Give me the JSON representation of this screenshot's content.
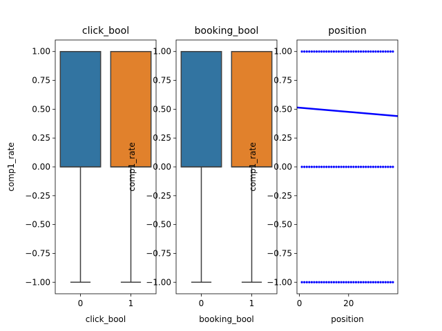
{
  "colors": {
    "box_0": "#3274a1",
    "box_1": "#e1812c",
    "box_edge": "#3f3f3f",
    "scatter": "#0000ff",
    "regression": "#0000ff"
  },
  "chart_data": [
    {
      "type": "box",
      "title": "click_bool",
      "xlabel": "click_bool",
      "ylabel": "comp1_rate",
      "categories": [
        "0",
        "1"
      ],
      "ylim": [
        -1.1,
        1.1
      ],
      "yticks": [
        "1.00",
        "0.75",
        "0.50",
        "0.25",
        "0.00",
        "−0.25",
        "−0.50",
        "−0.75",
        "−1.00"
      ],
      "ytick_values": [
        1.0,
        0.75,
        0.5,
        0.25,
        0.0,
        -0.25,
        -0.5,
        -0.75,
        -1.0
      ],
      "boxes": [
        {
          "category": "0",
          "whisker_low": -1.0,
          "q1": 0.0,
          "median": 0.0,
          "q3": 1.0,
          "whisker_high": 1.0
        },
        {
          "category": "1",
          "whisker_low": -1.0,
          "q1": 0.0,
          "median": 0.0,
          "q3": 1.0,
          "whisker_high": 1.0
        }
      ],
      "grid": false
    },
    {
      "type": "box",
      "title": "booking_bool",
      "xlabel": "booking_bool",
      "ylabel": "comp1_rate",
      "categories": [
        "0",
        "1"
      ],
      "ylim": [
        -1.1,
        1.1
      ],
      "yticks": [
        "1.00",
        "0.75",
        "0.50",
        "0.25",
        "0.00",
        "−0.25",
        "−0.50",
        "−0.75",
        "−1.00"
      ],
      "ytick_values": [
        1.0,
        0.75,
        0.5,
        0.25,
        0.0,
        -0.25,
        -0.5,
        -0.75,
        -1.0
      ],
      "boxes": [
        {
          "category": "0",
          "whisker_low": -1.0,
          "q1": 0.0,
          "median": 0.0,
          "q3": 1.0,
          "whisker_high": 1.0
        },
        {
          "category": "1",
          "whisker_low": -1.0,
          "q1": 0.0,
          "median": 0.0,
          "q3": 1.0,
          "whisker_high": 1.0
        }
      ],
      "grid": false
    },
    {
      "type": "scatter",
      "title": "position",
      "xlabel": "position",
      "ylabel": "comp1_rate",
      "xlim": [
        -1,
        40
      ],
      "ylim": [
        -1.1,
        1.1
      ],
      "xticks": [
        "0",
        "20"
      ],
      "xtick_values": [
        0,
        20
      ],
      "yticks": [
        "1.00",
        "0.75",
        "0.50",
        "0.25",
        "0.00",
        "−0.25",
        "−0.50",
        "−0.75",
        "−1.00"
      ],
      "ytick_values": [
        1.0,
        0.75,
        0.5,
        0.25,
        0.0,
        -0.25,
        -0.5,
        -0.75,
        -1.0
      ],
      "points": {
        "x_min": 1,
        "x_max": 38,
        "x_step": 1,
        "y_levels": [
          1.0,
          0.0,
          -1.0
        ]
      },
      "regression": {
        "x": [
          -1,
          40
        ],
        "y": [
          0.515,
          0.44
        ]
      },
      "grid": false
    }
  ]
}
